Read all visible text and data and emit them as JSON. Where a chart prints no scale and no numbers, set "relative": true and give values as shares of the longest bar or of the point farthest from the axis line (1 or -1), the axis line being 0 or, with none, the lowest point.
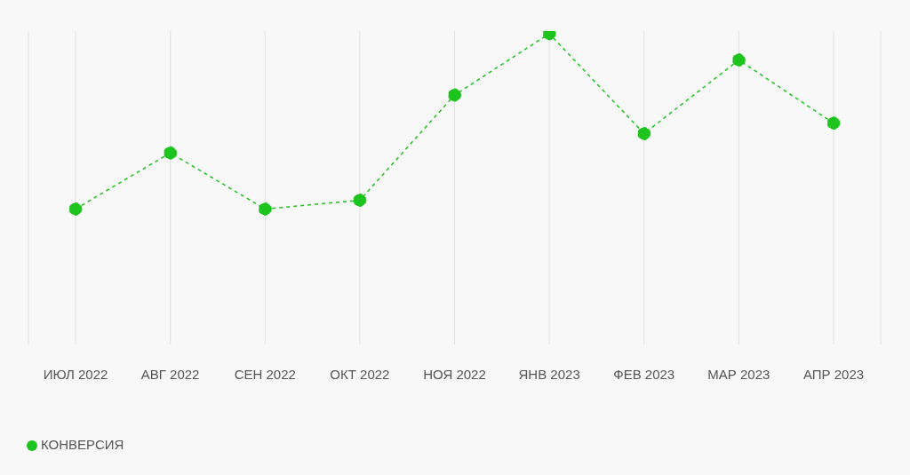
{
  "chart_data": {
    "type": "line",
    "relative": true,
    "categories": [
      "ИЮЛ 2022",
      "АВГ 2022",
      "СЕН 2022",
      "ОКТ 2022",
      "НОЯ 2022",
      "ЯНВ 2023",
      "ФЕВ 2023",
      "МАР 2023",
      "АПР 2023"
    ],
    "series": [
      {
        "name": "КОНВЕРСИЯ",
        "color": "#1ec41e",
        "values": [
          0,
          0.32,
          0,
          0.05,
          0.65,
          1,
          0.43,
          0.85,
          0.49
        ]
      }
    ],
    "grid": "x",
    "legend": "bottom left",
    "marker": "circle",
    "line_style": "dashed"
  }
}
